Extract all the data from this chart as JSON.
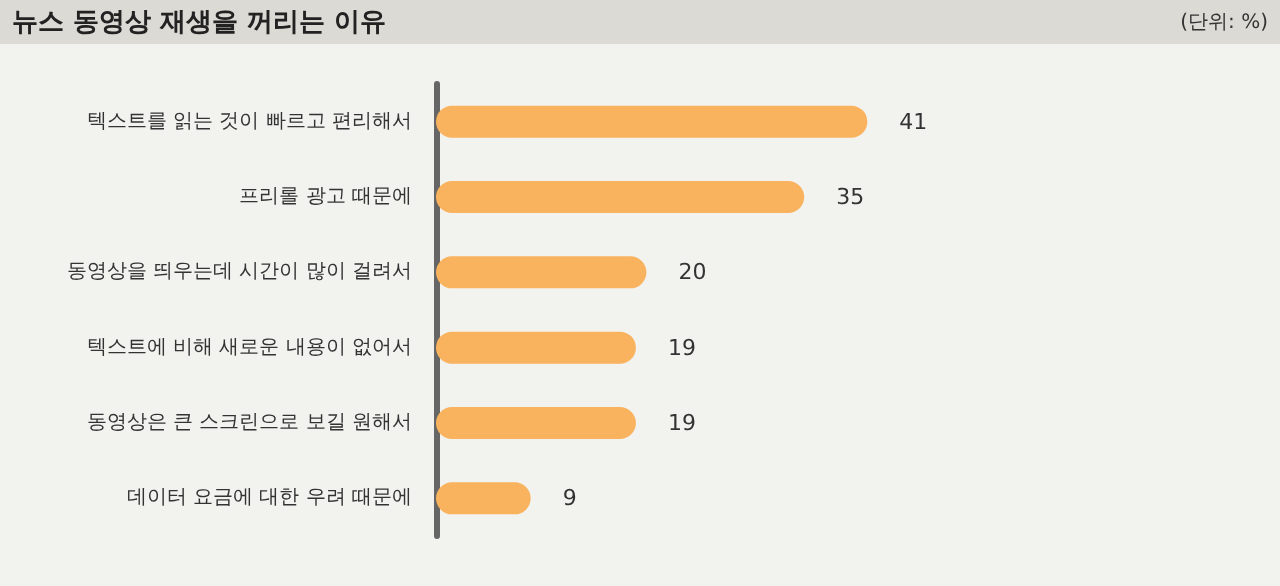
{
  "chart_data": {
    "type": "bar",
    "orientation": "horizontal",
    "title": "뉴스 동영상 재생을 꺼리는 이유",
    "annotations": [
      "(단위: %)"
    ],
    "categories": [
      "텍스트를 읽는 것이 빠르고 편리해서",
      "프리롤 광고 때문에",
      "동영상을 띄우는데 시간이 많이 걸려서",
      "텍스트에 비해 새로운 내용이 없어서",
      "동영상은 큰 스크린으로 보길 원해서",
      "데이터 요금에 대한 우려 때문에"
    ],
    "values": [
      41,
      35,
      20,
      19,
      19,
      9
    ],
    "color": "#f9b35e",
    "data_labels": true,
    "tick_labels": "y"
  }
}
